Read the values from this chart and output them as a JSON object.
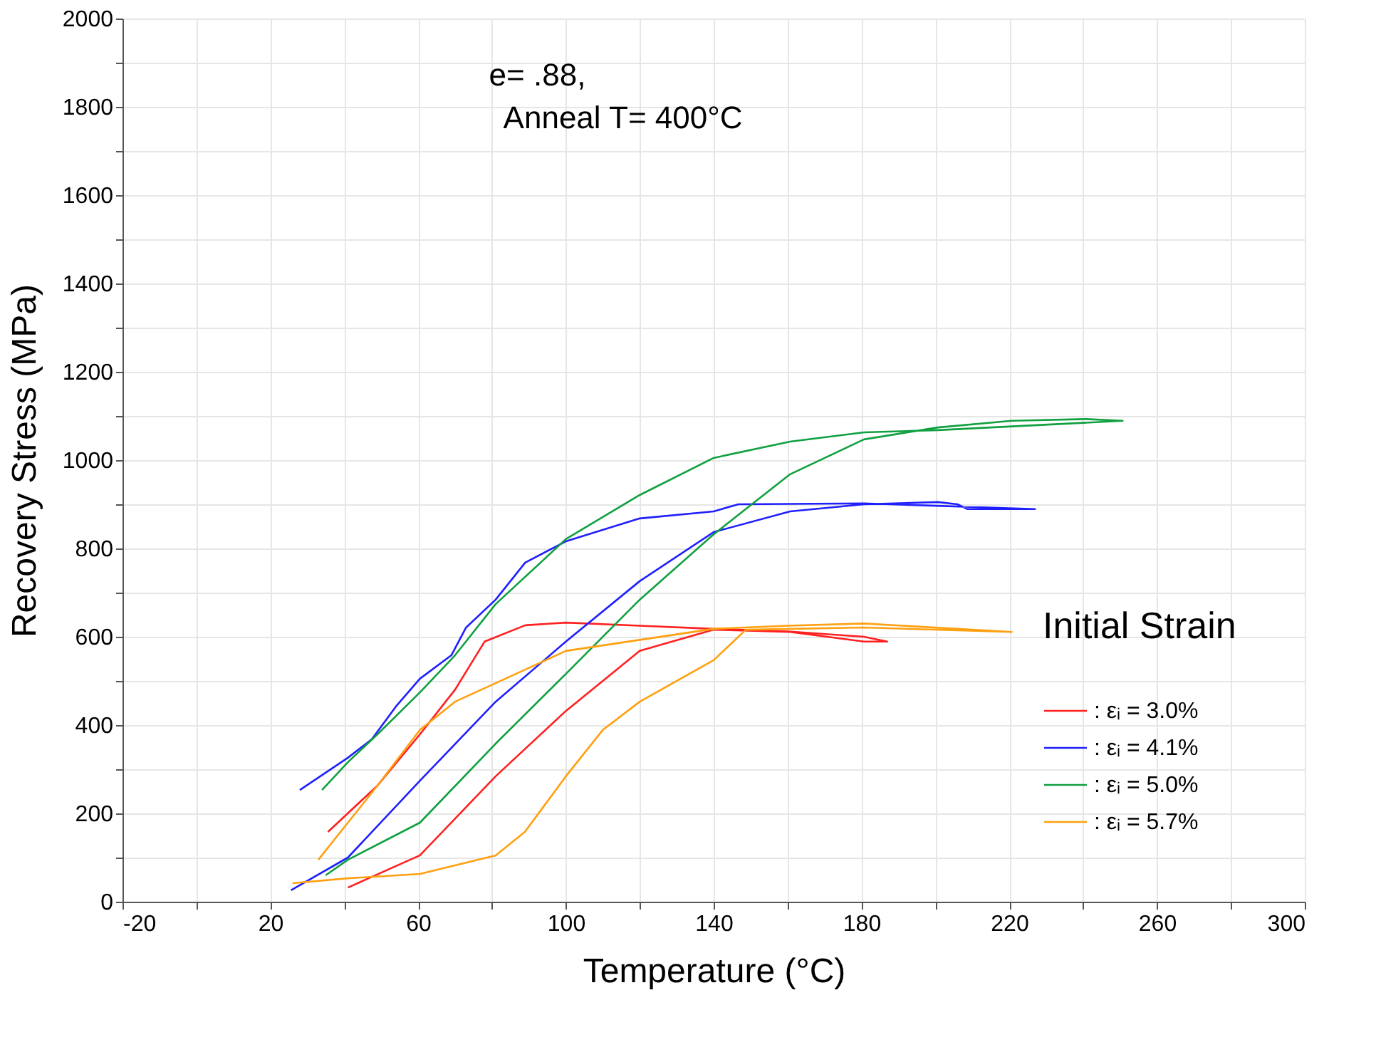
{
  "chart_data": {
    "type": "line",
    "xlabel": "Temperature  (°C)",
    "ylabel": "Recovery Stress  (MPa)",
    "legend_title": "Initial Strain",
    "legend": "bottom right",
    "grid": true,
    "line_style": "solid",
    "marker": "none",
    "annotations": [
      "e= .88,",
      "Anneal T= 400°C"
    ],
    "xlim": [
      -20,
      300
    ],
    "xticks": [
      -20,
      {
        "value": 0,
        "label": null
      },
      20,
      {
        "value": 40,
        "label": null
      },
      60,
      {
        "value": 80,
        "label": null
      },
      100,
      {
        "value": 120,
        "label": null
      },
      140,
      {
        "value": 160,
        "label": null
      },
      180,
      {
        "value": 200,
        "label": null
      },
      220,
      {
        "value": 240,
        "label": null
      },
      260,
      {
        "value": 280,
        "label": null
      },
      300
    ],
    "ylim": [
      0,
      2000
    ],
    "yticks": [
      0,
      {
        "value": 100,
        "label": null
      },
      200,
      {
        "value": 300,
        "label": null
      },
      400,
      {
        "value": 500,
        "label": null
      },
      600,
      {
        "value": 700,
        "label": null
      },
      800,
      {
        "value": 900,
        "label": null
      },
      1000,
      {
        "value": 1100,
        "label": null
      },
      1200,
      {
        "value": 1300,
        "label": null
      },
      1400,
      {
        "value": 1500,
        "label": null
      },
      1600,
      {
        "value": 1700,
        "label": null
      },
      1800,
      {
        "value": 1900,
        "label": null
      },
      2000
    ],
    "series": [
      {
        "name": ": εᵢ = 3.0%",
        "color": "#ff2020",
        "x": [
          41,
          60.5,
          81,
          100,
          120,
          140,
          160.7,
          180.7,
          187,
          180.7,
          160,
          140,
          120,
          100,
          89,
          78,
          70,
          60.5,
          49,
          35.6
        ],
        "values": [
          32,
          105,
          284,
          432,
          568,
          616,
          611,
          589,
          589,
          600,
          612,
          618,
          625,
          632,
          626,
          589,
          480,
          379,
          263,
          158
        ]
      },
      {
        "name": ": εᵢ = 4.1%",
        "color": "#2020ff",
        "x": [
          25.6,
          41,
          60.5,
          81,
          100,
          120,
          140,
          160.7,
          180.7,
          200.7,
          206,
          208.7,
          227,
          180.7,
          146.7,
          140,
          120,
          100,
          89,
          81,
          73,
          69,
          60.5,
          54,
          47.5,
          41,
          28
        ],
        "values": [
          26,
          100,
          274,
          453,
          589,
          726,
          837,
          884,
          900,
          905,
          900,
          889,
          889,
          902,
          900,
          884,
          868,
          816,
          768,
          684,
          621,
          558,
          505,
          442,
          368,
          326,
          253
        ]
      },
      {
        "name": ": εᵢ = 5.0%",
        "color": "#10a040",
        "x": [
          35,
          41,
          60.5,
          81,
          100,
          120,
          140,
          160.7,
          180.7,
          200.7,
          220.7,
          240.7,
          250.7,
          200.7,
          180.7,
          160.7,
          140,
          120,
          100,
          81,
          70,
          60.5,
          49,
          41,
          34
        ],
        "values": [
          60,
          95,
          179,
          358,
          516,
          684,
          832,
          968,
          1047,
          1074,
          1089,
          1093,
          1089,
          1068,
          1063,
          1042,
          1005,
          921,
          821,
          674,
          558,
          474,
          379,
          316,
          253
        ]
      },
      {
        "name": ": εᵢ = 5.7%",
        "color": "#ffa010",
        "x": [
          26,
          41,
          60.5,
          81,
          88.9,
          100,
          110,
          120,
          140,
          148.7,
          180.7,
          220.7,
          180.7,
          160,
          140,
          100,
          81,
          70,
          60.5,
          49,
          41,
          33
        ],
        "values": [
          42,
          53,
          63,
          105,
          158,
          284,
          389,
          453,
          547,
          616,
          621,
          611,
          630,
          625,
          618,
          568,
          495,
          453,
          389,
          263,
          179,
          95
        ]
      }
    ]
  }
}
